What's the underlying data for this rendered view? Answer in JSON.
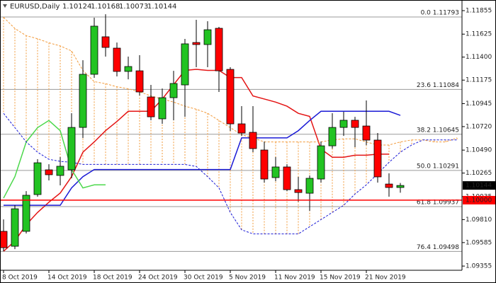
{
  "chart_data": {
    "type": "candlestick",
    "symbol": "EURUSD,Daily",
    "categories": [
      "8 Oct 2019",
      null,
      null,
      null,
      "14 Oct 2019",
      null,
      null,
      null,
      "18 Oct 2019",
      null,
      null,
      null,
      "24 Oct 2019",
      null,
      null,
      null,
      "30 Oct 2019",
      null,
      null,
      null,
      "5 Nov 2019",
      null,
      null,
      null,
      "11 Nov 2019",
      null,
      null,
      null,
      "15 Nov 2019",
      null,
      null,
      null,
      "21 Nov 2019",
      null,
      null,
      null,
      null,
      null,
      null,
      null,
      null
    ],
    "ohlc": {
      "up_color": "#22c322",
      "down_color": "#ff0000",
      "open": [
        1.09695,
        1.09549,
        1.09695,
        1.10055,
        1.10297,
        1.10242,
        1.10297,
        1.10712,
        1.11232,
        1.11599,
        1.11488,
        1.1126,
        1.11266,
        1.1101,
        1.10796,
        1.11003,
        1.11128,
        1.11543,
        1.11523,
        1.11682,
        1.1128,
        1.10747,
        1.10664,
        1.10491,
        1.10221,
        1.10325,
        1.10103,
        1.10068,
        1.10207,
        1.10532,
        1.10712,
        1.10782,
        1.10726,
        1.10588,
        1.10158,
        1.10124,
        null,
        null,
        null,
        null,
        null
      ],
      "high": [
        1.09812,
        1.09951,
        1.10089,
        1.10401,
        1.10352,
        1.10422,
        1.10851,
        1.1137,
        1.11786,
        1.1182,
        1.11543,
        1.11405,
        1.11419,
        1.11128,
        1.11093,
        1.11266,
        1.11578,
        1.11765,
        1.11751,
        1.11696,
        1.11301,
        1.1092,
        1.1092,
        1.10574,
        1.10422,
        1.10352,
        1.10228,
        1.10242,
        1.10574,
        1.10851,
        1.10865,
        1.10816,
        1.10976,
        1.10657,
        1.10263,
        1.10168,
        null,
        null,
        null,
        null,
        null
      ],
      "low": [
        1.09501,
        1.09521,
        1.09674,
        1.10034,
        1.10193,
        1.10145,
        1.10214,
        1.10609,
        1.11197,
        1.11405,
        1.11211,
        1.11183,
        1.11024,
        1.10782,
        1.10747,
        1.10782,
        1.10816,
        1.11301,
        1.11301,
        1.11059,
        1.10678,
        1.10629,
        1.1047,
        1.10172,
        1.10186,
        1.10089,
        1.09985,
        1.09895,
        1.10172,
        1.10505,
        1.10629,
        1.10519,
        1.10539,
        1.10172,
        1.10034,
        1.10073,
        null,
        null,
        null,
        null,
        null
      ],
      "close": [
        1.09535,
        1.09916,
        1.10048,
        1.10366,
        1.10249,
        1.10332,
        1.10712,
        1.11232,
        1.11703,
        1.11495,
        1.1126,
        1.11308,
        1.11059,
        1.10816,
        1.11003,
        1.11142,
        1.1153,
        1.11523,
        1.11668,
        1.11266,
        1.10747,
        1.10657,
        1.10505,
        1.10207,
        1.10325,
        1.10103,
        1.10075,
        1.10214,
        1.10532,
        1.10712,
        1.10782,
        1.10712,
        1.10588,
        1.10228,
        1.10124,
        1.10144,
        null,
        null,
        null,
        null,
        null
      ]
    },
    "lines": [
      {
        "color": "#e41414",
        "dashed": false,
        "values": [
          1.095,
          1.096,
          1.0976,
          1.0988,
          1.0998,
          1.1007,
          1.1023,
          1.1047,
          1.1057,
          1.1068,
          1.1077,
          1.1087,
          1.1087,
          1.1087,
          1.1099,
          1.1113,
          1.1127,
          1.1128,
          1.1127,
          1.1127,
          1.112,
          1.112,
          1.1102,
          1.1099,
          1.1096,
          1.1092,
          1.1085,
          1.1082,
          1.105,
          1.1042,
          1.1042,
          1.1044,
          1.1044,
          1.1045,
          1.1045,
          null,
          null,
          null,
          null,
          null,
          null
        ]
      },
      {
        "color": "#1a1ad6",
        "dashed": false,
        "values": [
          1.0995,
          1.0995,
          1.0995,
          1.0995,
          1.0995,
          1.0995,
          1.1012,
          1.1023,
          1.103,
          1.103,
          1.103,
          1.103,
          1.103,
          1.103,
          1.103,
          1.103,
          1.103,
          1.103,
          1.103,
          1.103,
          1.103,
          1.1061,
          1.1061,
          1.1061,
          1.1061,
          1.1061,
          1.1068,
          1.1078,
          1.1087,
          1.1087,
          1.1087,
          1.1087,
          1.1087,
          1.1087,
          1.1087,
          1.1083,
          null,
          null,
          null,
          null,
          null
        ]
      },
      {
        "color": "#4cd84c",
        "dashed": false,
        "values": [
          1.1002,
          1.1023,
          1.1057,
          1.1071,
          1.1078,
          1.1068,
          1.103,
          1.1012,
          1.1015,
          1.1015,
          null,
          null,
          null,
          null,
          null,
          null,
          null,
          null,
          null,
          null,
          null,
          null,
          null,
          null,
          null,
          null,
          null,
          null,
          null,
          null,
          null,
          null,
          null,
          null,
          null,
          null,
          null,
          null,
          null,
          null,
          null
        ]
      },
      {
        "color": "#f29a3a",
        "dashed": true,
        "values": [
          1.1179,
          1.1168,
          1.1161,
          1.1158,
          1.1154,
          1.1151,
          1.1146,
          1.1127,
          1.1116,
          1.1114,
          1.1111,
          1.1109,
          1.1106,
          1.1102,
          1.1099,
          1.1096,
          1.1092,
          1.1089,
          1.1085,
          1.1078,
          1.1071,
          1.1064,
          1.1061,
          1.1057,
          1.1057,
          1.1057,
          1.1057,
          1.1057,
          1.1057,
          1.1059,
          1.106,
          1.106,
          1.1057,
          1.1054,
          1.1054,
          1.1057,
          1.1059,
          1.1059,
          1.1057,
          1.1057,
          1.1061
        ]
      },
      {
        "color": "#1a1ad6",
        "dashed": true,
        "values": [
          1.1085,
          1.1071,
          1.1057,
          1.1047,
          1.104,
          1.1038,
          1.1037,
          1.1035,
          1.1035,
          1.1035,
          1.1035,
          1.1035,
          1.1035,
          1.1035,
          1.1035,
          1.1035,
          1.1035,
          1.1033,
          1.1023,
          1.1012,
          1.0988,
          1.0971,
          1.0967,
          1.0967,
          1.0967,
          1.0967,
          1.0967,
          1.0974,
          1.0981,
          1.0988,
          1.0995,
          1.1006,
          1.1015,
          1.1026,
          1.1037,
          1.1047,
          1.1054,
          1.1059,
          1.1059,
          1.1059,
          1.1059
        ]
      }
    ],
    "cloud_color": "#f29a3a",
    "fib": [
      {
        "value": 1.11793,
        "label": "0.0 1.11793"
      },
      {
        "value": 1.11084,
        "label": "23.6 1.11084"
      },
      {
        "value": 1.10645,
        "label": "38.2 1.10645"
      },
      {
        "value": 1.10291,
        "label": "50.0 1.10291"
      },
      {
        "value": 1.09937,
        "label": "61.8 1.09937"
      },
      {
        "value": 1.09498,
        "label": "76.4 1.09498"
      }
    ],
    "hline": {
      "value": 1.1,
      "label": "1.10000",
      "color": "#ff0000"
    },
    "ylim": [
      1.09314,
      1.11959
    ],
    "yticks": [
      1.11855,
      1.11625,
      {
        "value": 1.114,
        "label": "1.11400"
      },
      1.11175,
      1.10945,
      {
        "value": 1.1072,
        "label": "1.10720"
      },
      {
        "value": 1.1049,
        "label": "1.10490"
      },
      1.10265,
      1.10035,
      {
        "value": 1.0981,
        "label": "1.09810"
      },
      1.09585,
      1.09355
    ]
  }
}
